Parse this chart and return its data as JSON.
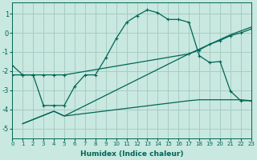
{
  "xlabel": "Humidex (Indice chaleur)",
  "background_color": "#c8e8e0",
  "grid_color": "#a8ccc4",
  "line_color": "#006655",
  "xlim": [
    0,
    23
  ],
  "ylim": [
    -5.5,
    1.6
  ],
  "xticks": [
    0,
    1,
    2,
    3,
    4,
    5,
    6,
    7,
    8,
    9,
    10,
    11,
    12,
    13,
    14,
    15,
    16,
    17,
    18,
    19,
    20,
    21,
    22,
    23
  ],
  "yticks": [
    -5,
    -4,
    -3,
    -2,
    -1,
    0,
    1
  ],
  "series": [
    {
      "x": [
        0,
        1,
        2,
        3,
        4,
        5,
        6,
        7,
        8,
        9,
        10,
        11,
        12,
        13,
        14,
        15,
        16,
        17,
        18,
        19,
        20,
        21,
        22,
        23
      ],
      "y": [
        -1.7,
        -2.2,
        -2.2,
        -3.8,
        -3.8,
        -3.8,
        -2.8,
        -2.2,
        -2.2,
        -1.3,
        -0.3,
        0.55,
        0.9,
        1.2,
        1.05,
        0.7,
        0.7,
        0.55,
        -1.2,
        -1.55,
        -1.5,
        -3.05,
        -3.55,
        -3.55
      ],
      "marker": true
    },
    {
      "x": [
        0,
        1,
        2,
        3,
        4,
        5,
        17,
        18,
        19,
        20,
        21,
        22,
        23
      ],
      "y": [
        -2.2,
        -2.2,
        -2.2,
        -2.2,
        -2.2,
        -2.2,
        -1.1,
        -0.9,
        -0.6,
        -0.4,
        -0.15,
        0.0,
        0.2
      ],
      "marker": true
    },
    {
      "x": [
        1,
        4,
        5,
        17,
        18,
        19,
        20,
        21,
        22,
        23
      ],
      "y": [
        -4.75,
        -4.1,
        -4.35,
        -3.55,
        -3.5,
        -3.5,
        -3.5,
        -3.5,
        -3.5,
        -3.55
      ],
      "marker": false
    },
    {
      "x": [
        1,
        4,
        5,
        17,
        18,
        19,
        20,
        21,
        22,
        23
      ],
      "y": [
        -4.75,
        -4.1,
        -4.35,
        -1.1,
        -0.85,
        -0.6,
        -0.35,
        -0.1,
        0.1,
        0.3
      ],
      "marker": false
    }
  ]
}
